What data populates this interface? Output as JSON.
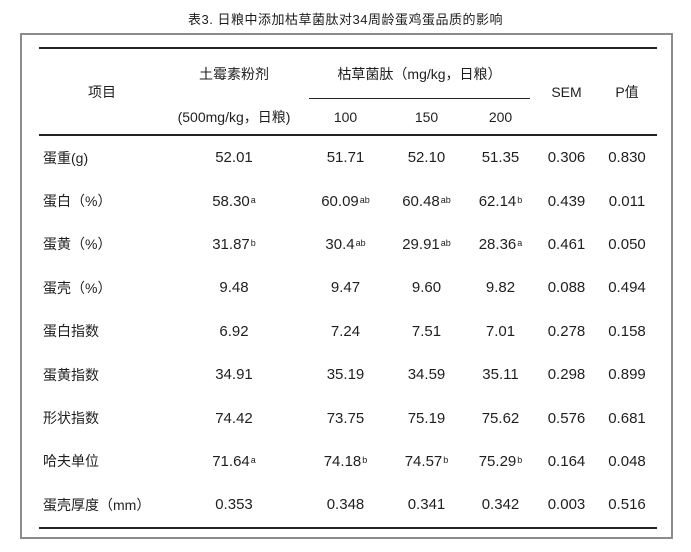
{
  "title": "表3. 日粮中添加枯草菌肽对34周龄蛋鸡蛋品质的影响",
  "table": {
    "header": {
      "item_col": "项目",
      "antibiotic_col_line1": "土霉素粉剂",
      "antibiotic_col_line2": "(500mg/kg，日粮)",
      "treatment_group": "枯草菌肽（mg/kg，日粮）",
      "doses": [
        "100",
        "150",
        "200"
      ],
      "sem_col": "SEM",
      "pvalue_col": "P值"
    },
    "rows": [
      {
        "label": "蛋重(g)",
        "values": [
          {
            "v": "52.01"
          },
          {
            "v": "51.71"
          },
          {
            "v": "52.10"
          },
          {
            "v": "51.35"
          },
          {
            "v": "0.306"
          },
          {
            "v": "0.830"
          }
        ]
      },
      {
        "label": "蛋白（%）",
        "values": [
          {
            "v": "58.30",
            "sup": "a"
          },
          {
            "v": "60.09",
            "sup": "ab"
          },
          {
            "v": "60.48",
            "sup": "ab"
          },
          {
            "v": "62.14",
            "sup": "b"
          },
          {
            "v": "0.439"
          },
          {
            "v": "0.011"
          }
        ]
      },
      {
        "label": "蛋黄（%）",
        "values": [
          {
            "v": "31.87",
            "sup": "b"
          },
          {
            "v": "30.4",
            "sup": "ab"
          },
          {
            "v": "29.91",
            "sup": "ab"
          },
          {
            "v": "28.36",
            "sup": "a"
          },
          {
            "v": "0.461"
          },
          {
            "v": "0.050"
          }
        ]
      },
      {
        "label": "蛋壳（%）",
        "values": [
          {
            "v": "9.48"
          },
          {
            "v": "9.47"
          },
          {
            "v": "9.60"
          },
          {
            "v": "9.82"
          },
          {
            "v": "0.088"
          },
          {
            "v": "0.494"
          }
        ]
      },
      {
        "label": "蛋白指数",
        "values": [
          {
            "v": "6.92"
          },
          {
            "v": "7.24"
          },
          {
            "v": "7.51"
          },
          {
            "v": "7.01"
          },
          {
            "v": "0.278"
          },
          {
            "v": "0.158"
          }
        ]
      },
      {
        "label": "蛋黄指数",
        "values": [
          {
            "v": "34.91"
          },
          {
            "v": "35.19"
          },
          {
            "v": "34.59"
          },
          {
            "v": "35.11"
          },
          {
            "v": "0.298"
          },
          {
            "v": "0.899"
          }
        ]
      },
      {
        "label": "形状指数",
        "values": [
          {
            "v": "74.42"
          },
          {
            "v": "73.75"
          },
          {
            "v": "75.19"
          },
          {
            "v": "75.62"
          },
          {
            "v": "0.576"
          },
          {
            "v": "0.681"
          }
        ]
      },
      {
        "label": "哈夫单位",
        "values": [
          {
            "v": "71.64",
            "sup": "a"
          },
          {
            "v": "74.18",
            "sup": "b"
          },
          {
            "v": "74.57",
            "sup": "b"
          },
          {
            "v": "75.29",
            "sup": "b"
          },
          {
            "v": "0.164"
          },
          {
            "v": "0.048"
          }
        ]
      },
      {
        "label": "蛋壳厚度（mm）",
        "values": [
          {
            "v": "0.353"
          },
          {
            "v": "0.348"
          },
          {
            "v": "0.341"
          },
          {
            "v": "0.342"
          },
          {
            "v": "0.003"
          },
          {
            "v": "0.516"
          }
        ]
      }
    ]
  },
  "colors": {
    "rule": "#222222",
    "box_border": "#8c8c8c",
    "text": "#1f1f1f"
  }
}
